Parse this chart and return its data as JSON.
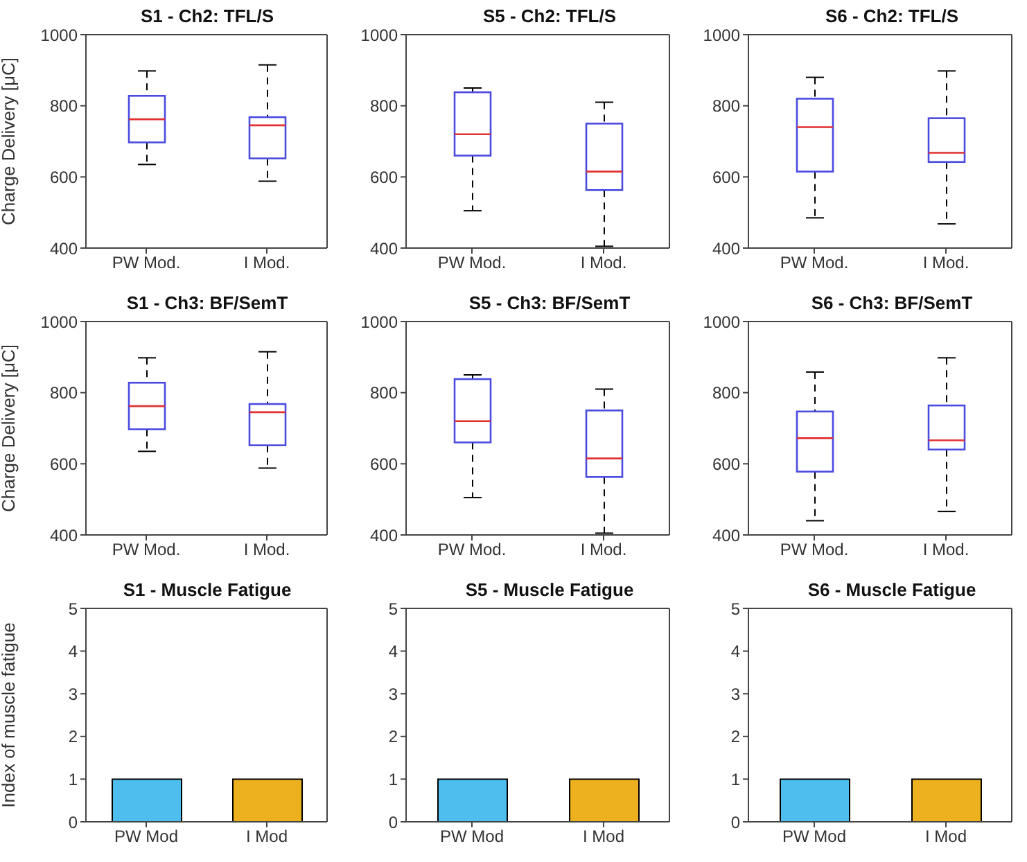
{
  "chart_data": [
    {
      "type": "box",
      "title": "S1 - Ch2: TFL/S",
      "ylabel": "Charge Delivery [μC]",
      "categories": [
        "PW Mod.",
        "I Mod."
      ],
      "ylim": [
        400,
        1000
      ],
      "yticks": [
        400,
        600,
        800,
        1000
      ],
      "boxes": [
        {
          "low": 635,
          "q1": 697,
          "median": 762,
          "q3": 828,
          "high": 898
        },
        {
          "low": 588,
          "q1": 652,
          "median": 745,
          "q3": 768,
          "high": 915
        }
      ]
    },
    {
      "type": "box",
      "title": "S5 - Ch2: TFL/S",
      "categories": [
        "PW Mod.",
        "I Mod."
      ],
      "ylim": [
        400,
        1000
      ],
      "yticks": [
        400,
        600,
        800,
        1000
      ],
      "boxes": [
        {
          "low": 505,
          "q1": 660,
          "median": 720,
          "q3": 838,
          "high": 850
        },
        {
          "low": 405,
          "q1": 563,
          "median": 615,
          "q3": 750,
          "high": 810
        }
      ]
    },
    {
      "type": "box",
      "title": "S6 - Ch2: TFL/S",
      "categories": [
        "PW Mod.",
        "I Mod."
      ],
      "ylim": [
        400,
        1000
      ],
      "yticks": [
        400,
        600,
        800,
        1000
      ],
      "boxes": [
        {
          "low": 485,
          "q1": 615,
          "median": 740,
          "q3": 820,
          "high": 880
        },
        {
          "low": 468,
          "q1": 642,
          "median": 668,
          "q3": 765,
          "high": 898
        }
      ]
    },
    {
      "type": "box",
      "title": "S1 - Ch3: BF/SemT",
      "ylabel": "Charge Delivery [μC]",
      "categories": [
        "PW Mod.",
        "I Mod."
      ],
      "ylim": [
        400,
        1000
      ],
      "yticks": [
        400,
        600,
        800,
        1000
      ],
      "boxes": [
        {
          "low": 635,
          "q1": 697,
          "median": 762,
          "q3": 828,
          "high": 898
        },
        {
          "low": 588,
          "q1": 652,
          "median": 745,
          "q3": 768,
          "high": 915
        }
      ]
    },
    {
      "type": "box",
      "title": "S5 - Ch3: BF/SemT",
      "categories": [
        "PW Mod.",
        "I Mod."
      ],
      "ylim": [
        400,
        1000
      ],
      "yticks": [
        400,
        600,
        800,
        1000
      ],
      "boxes": [
        {
          "low": 505,
          "q1": 660,
          "median": 720,
          "q3": 838,
          "high": 850
        },
        {
          "low": 405,
          "q1": 563,
          "median": 615,
          "q3": 750,
          "high": 810
        }
      ]
    },
    {
      "type": "box",
      "title": "S6 - Ch3: BF/SemT",
      "categories": [
        "PW Mod.",
        "I Mod."
      ],
      "ylim": [
        400,
        1000
      ],
      "yticks": [
        400,
        600,
        800,
        1000
      ],
      "boxes": [
        {
          "low": 440,
          "q1": 578,
          "median": 672,
          "q3": 747,
          "high": 858
        },
        {
          "low": 466,
          "q1": 640,
          "median": 666,
          "q3": 764,
          "high": 898
        }
      ]
    },
    {
      "type": "bar",
      "title": "S1 - Muscle Fatigue",
      "ylabel": "Index of muscle fatigue",
      "categories": [
        "PW Mod",
        "I Mod"
      ],
      "values": [
        1,
        1
      ],
      "colors": [
        "#4dbeee",
        "#edb120"
      ],
      "ylim": [
        0,
        5
      ],
      "yticks": [
        0,
        1,
        2,
        3,
        4,
        5
      ]
    },
    {
      "type": "bar",
      "title": "S5 - Muscle Fatigue",
      "categories": [
        "PW Mod",
        "I Mod"
      ],
      "values": [
        1,
        1
      ],
      "colors": [
        "#4dbeee",
        "#edb120"
      ],
      "ylim": [
        0,
        5
      ],
      "yticks": [
        0,
        1,
        2,
        3,
        4,
        5
      ]
    },
    {
      "type": "bar",
      "title": "S6 - Muscle Fatigue",
      "categories": [
        "PW Mod",
        "I Mod"
      ],
      "values": [
        1,
        1
      ],
      "colors": [
        "#4dbeee",
        "#edb120"
      ],
      "ylim": [
        0,
        5
      ],
      "yticks": [
        0,
        1,
        2,
        3,
        4,
        5
      ]
    }
  ]
}
